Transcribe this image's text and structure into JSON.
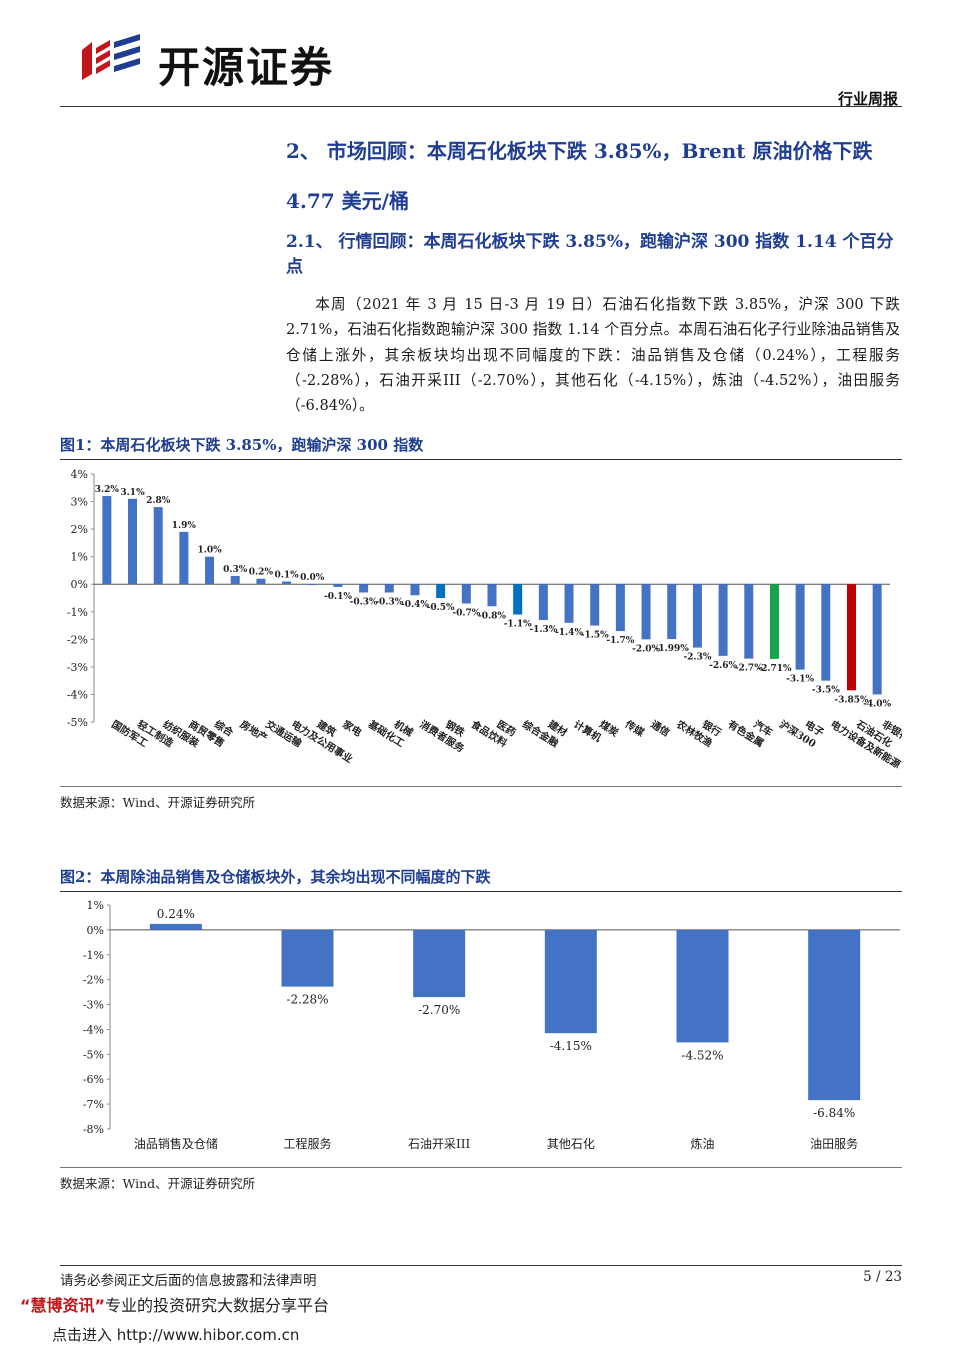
{
  "header": {
    "brand": "开源证券",
    "report_type": "行业周报",
    "brand_color": "#c2161b",
    "accent_color": "#1f3e91"
  },
  "section": {
    "heading": "2、 市场回顾：本周石化板块下跌 3.85%，Brent 原油价格下跌 4.77 美元/桶",
    "subheading": "2.1、 行情回顾：本周石化板块下跌 3.85%，跑输沪深 300 指数 1.14 个百分点",
    "paragraph": "本周（2021 年 3 月 15 日-3 月 19 日）石油石化指数下跌 3.85%，沪深 300 下跌 2.71%，石油石化指数跑输沪深 300 指数 1.14 个百分点。本周石油石化子行业除油品销售及仓储上涨外，其余板块均出现不同幅度的下跌：油品销售及仓储（0.24%），工程服务（-2.28%），石油开采III（-2.70%），其他石化（-4.15%），炼油（-4.52%），油田服务（-6.84%）。"
  },
  "figure1": {
    "title": "图1：本周石化板块下跌 3.85%，跑输沪深 300 指数",
    "source": "数据来源：Wind、开源证券研究所"
  },
  "figure2": {
    "title": "图2：本周除油品销售及仓储板块外，其余均出现不同幅度的下跌",
    "source": "数据来源：Wind、开源证券研究所"
  },
  "footer": {
    "disclaimer": "请务必参阅正文后面的信息披露和法律声明",
    "page": "5 / 23"
  },
  "promo": {
    "quote_open": "“",
    "name": "慧博资讯",
    "quote_close": "”",
    "slogan": "专业的投资研究大数据分享平台",
    "line2": "点击进入 http://www.hibor.com.cn"
  },
  "chart_data": [
    {
      "type": "bar",
      "title": "本周石化板块下跌 3.85%，跑输沪深 300 指数",
      "categories": [
        "国防军工",
        "轻工制造",
        "纺织服装",
        "商贸零售",
        "综合",
        "房地产",
        "交通运输",
        "电力及公用事业",
        "建筑",
        "家电",
        "基础化工",
        "机械",
        "消费者服务",
        "钢铁",
        "食品饮料",
        "医药",
        "综合金融",
        "建材",
        "计算机",
        "煤炭",
        "传媒",
        "通信",
        "农林牧渔",
        "银行",
        "有色金属",
        "汽车",
        "沪深300",
        "电子",
        "电力设备及新能源",
        "石油石化",
        "非银行金融"
      ],
      "values": [
        3.2,
        3.1,
        2.8,
        1.9,
        1.0,
        0.3,
        0.2,
        0.1,
        0.0,
        -0.1,
        -0.3,
        -0.3,
        -0.4,
        -0.5,
        -0.7,
        -0.8,
        -1.1,
        -1.3,
        -1.4,
        -1.5,
        -1.7,
        -2.0,
        -1.99,
        -2.3,
        -2.6,
        -2.7,
        -2.71,
        -3.1,
        -3.5,
        -3.85,
        -4.0
      ],
      "labels": [
        "3.2%",
        "3.1%",
        "2.8%",
        "1.9%",
        "1.0%",
        "0.3%",
        "0.2%",
        "0.1%",
        "0.0%",
        "-0.1%",
        "-0.3%",
        "-0.3%",
        "-0.4%",
        "-0.5%",
        "-0.7%",
        "-0.8%",
        "-1.1%",
        "-1.3%",
        "-1.4%",
        "-1.5%",
        "-1.7%",
        "-2.0%",
        "-1.99%",
        "-2.3%",
        "-2.6%",
        "-2.7%",
        "-2.71%",
        "-3.1%",
        "-3.5%",
        "-3.85%",
        "-4.0%"
      ],
      "colors": {
        "default": "#4472c4",
        "highlight_blue": "#0070c0",
        "benchmark": "#16a34a",
        "sector": "#c00000"
      },
      "highlight_blue": [
        "钢铁",
        "综合金融"
      ],
      "benchmark": "沪深300",
      "sector": "石油石化",
      "yticks": [
        "4%",
        "3%",
        "2%",
        "1%",
        "0%",
        "-1%",
        "-2%",
        "-3%",
        "-4%",
        "-5%"
      ],
      "ylim": [
        -5,
        4
      ],
      "ylabel": "",
      "xlabel": ""
    },
    {
      "type": "bar",
      "title": "本周除油品销售及仓储板块外，其余均出现不同幅度的下跌",
      "categories": [
        "油品销售及仓储",
        "工程服务",
        "石油开采III",
        "其他石化",
        "炼油",
        "油田服务"
      ],
      "values": [
        0.24,
        -2.28,
        -2.7,
        -4.15,
        -4.52,
        -6.84
      ],
      "labels": [
        "0.24%",
        "-2.28%",
        "-2.70%",
        "-4.15%",
        "-4.52%",
        "-6.84%"
      ],
      "color": "#4472c4",
      "yticks": [
        "1%",
        "0%",
        "-1%",
        "-2%",
        "-3%",
        "-4%",
        "-5%",
        "-6%",
        "-7%",
        "-8%"
      ],
      "ylim": [
        -8,
        1
      ],
      "ylabel": "",
      "xlabel": ""
    }
  ]
}
